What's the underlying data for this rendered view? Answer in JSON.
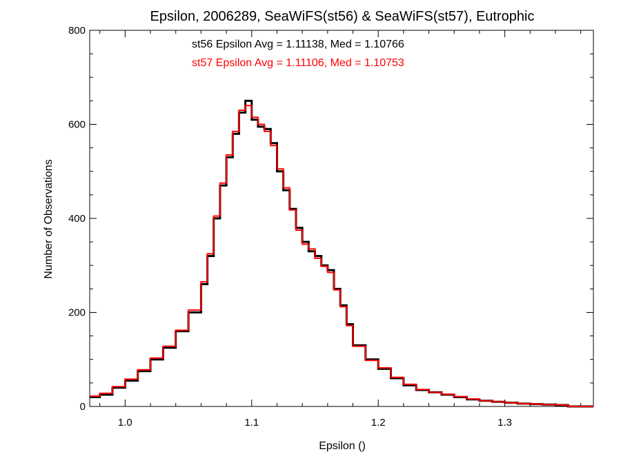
{
  "chart_data": {
    "type": "step-histogram",
    "title": "Epsilon, 2006289, SeaWiFS(st56) & SeaWiFS(st57), Eutrophic",
    "xlabel": "Epsilon ()",
    "ylabel": "Number of Observations",
    "xlim": [
      0.972,
      1.37
    ],
    "ylim": [
      0,
      800
    ],
    "xticks": [
      1.0,
      1.1,
      1.2,
      1.3
    ],
    "xtick_labels": [
      "1.0",
      "1.1",
      "1.2",
      "1.3"
    ],
    "yticks": [
      0,
      200,
      400,
      600,
      800
    ],
    "ytick_labels": [
      "0",
      "200",
      "400",
      "600",
      "800"
    ],
    "annotations": [
      {
        "text": "st56 Epsilon Avg = 1.11138, Med = 1.10766",
        "color": "#000000"
      },
      {
        "text": "st57 Epsilon Avg = 1.11106, Med = 1.10753",
        "color": "#ff0000"
      }
    ],
    "series": [
      {
        "color": "#000000",
        "x": [
          0.972,
          0.98,
          0.99,
          1.0,
          1.01,
          1.02,
          1.03,
          1.04,
          1.05,
          1.06,
          1.065,
          1.07,
          1.075,
          1.08,
          1.085,
          1.09,
          1.095,
          1.1,
          1.105,
          1.11,
          1.115,
          1.12,
          1.125,
          1.13,
          1.135,
          1.14,
          1.145,
          1.15,
          1.155,
          1.16,
          1.165,
          1.17,
          1.175,
          1.18,
          1.19,
          1.2,
          1.21,
          1.22,
          1.23,
          1.24,
          1.25,
          1.26,
          1.27,
          1.28,
          1.29,
          1.3,
          1.31,
          1.32,
          1.33,
          1.34,
          1.35
        ],
        "y": [
          20,
          25,
          40,
          55,
          75,
          100,
          125,
          160,
          200,
          260,
          320,
          400,
          470,
          530,
          580,
          625,
          650,
          610,
          595,
          590,
          560,
          500,
          460,
          420,
          380,
          350,
          330,
          320,
          300,
          290,
          250,
          215,
          175,
          130,
          100,
          80,
          60,
          45,
          35,
          30,
          25,
          20,
          15,
          12,
          10,
          8,
          6,
          5,
          4,
          3,
          0
        ]
      },
      {
        "color": "#ff0000",
        "x": [
          0.972,
          0.98,
          0.99,
          1.0,
          1.01,
          1.02,
          1.03,
          1.04,
          1.05,
          1.06,
          1.065,
          1.07,
          1.075,
          1.08,
          1.085,
          1.09,
          1.095,
          1.1,
          1.105,
          1.11,
          1.115,
          1.12,
          1.125,
          1.13,
          1.135,
          1.14,
          1.145,
          1.15,
          1.155,
          1.16,
          1.165,
          1.17,
          1.175,
          1.18,
          1.19,
          1.2,
          1.21,
          1.22,
          1.23,
          1.24,
          1.25,
          1.26,
          1.27,
          1.28,
          1.29,
          1.3,
          1.31,
          1.32,
          1.33,
          1.34,
          1.35
        ],
        "y": [
          22,
          28,
          42,
          58,
          78,
          103,
          128,
          162,
          205,
          265,
          325,
          405,
          475,
          535,
          585,
          630,
          640,
          615,
          600,
          585,
          555,
          505,
          465,
          418,
          375,
          345,
          335,
          315,
          298,
          285,
          248,
          212,
          172,
          128,
          98,
          82,
          62,
          47,
          36,
          30,
          26,
          21,
          16,
          12,
          10,
          8,
          6,
          5,
          4,
          3,
          0
        ]
      }
    ]
  }
}
